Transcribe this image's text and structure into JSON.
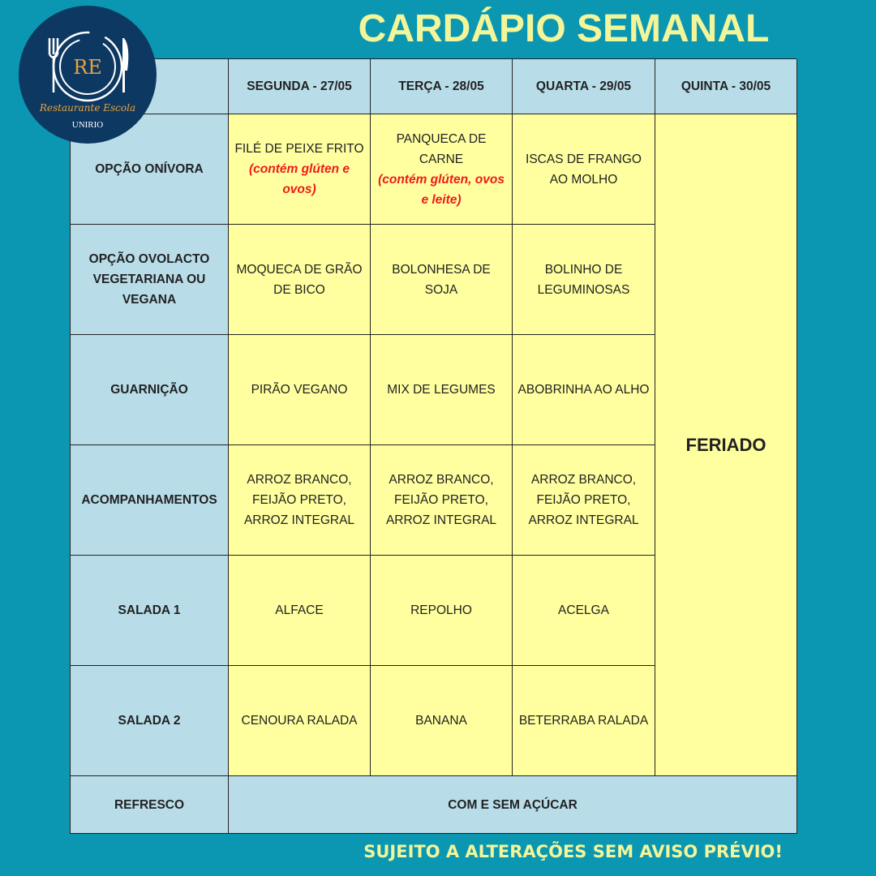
{
  "title": "CARDÁPIO SEMANAL",
  "logo": {
    "initials": "RE",
    "name": "Restaurante Escola",
    "org": "UNIRIO"
  },
  "days": [
    "SEGUNDA - 27/05",
    "TERÇA - 28/05",
    "QUARTA - 29/05",
    "QUINTA - 30/05"
  ],
  "rows": [
    {
      "label": "OPÇÃO ONÍVORA",
      "items": [
        {
          "text": "FILÉ DE PEIXE FRITO",
          "note": "(contém glúten e ovos)"
        },
        {
          "text": "PANQUECA DE CARNE",
          "note": "(contém glúten, ovos e leite)"
        },
        {
          "text": "ISCAS DE FRANGO AO MOLHO"
        }
      ]
    },
    {
      "label": "OPÇÃO OVOLACTO VEGETARIANA OU VEGANA",
      "items": [
        {
          "text": "MOQUECA DE GRÃO DE BICO"
        },
        {
          "text": "BOLONHESA DE SOJA"
        },
        {
          "text": "BOLINHO DE LEGUMINOSAS"
        }
      ]
    },
    {
      "label": "GUARNIÇÃO",
      "items": [
        {
          "text": "PIRÃO VEGANO"
        },
        {
          "text": "MIX DE LEGUMES"
        },
        {
          "text": "ABOBRINHA AO ALHO"
        }
      ]
    },
    {
      "label": "ACOMPANHAMENTOS",
      "items": [
        {
          "text": "ARROZ BRANCO, FEIJÃO PRETO, ARROZ INTEGRAL"
        },
        {
          "text": "ARROZ BRANCO, FEIJÃO PRETO, ARROZ INTEGRAL"
        },
        {
          "text": "ARROZ BRANCO, FEIJÃO PRETO, ARROZ INTEGRAL"
        }
      ]
    },
    {
      "label": "SALADA 1",
      "items": [
        {
          "text": "ALFACE"
        },
        {
          "text": "REPOLHO"
        },
        {
          "text": "ACELGA"
        }
      ]
    },
    {
      "label": "SALADA 2",
      "items": [
        {
          "text": "CENOURA RALADA"
        },
        {
          "text": "BANANA"
        },
        {
          "text": "BETERRABA RALADA"
        }
      ]
    }
  ],
  "holiday": "FERIADO",
  "refresco": {
    "label": "REFRESCO",
    "value": "COM E SEM AÇÚCAR"
  },
  "footer": "SUJEITO A ALTERAÇÕES SEM AVISO PRÉVIO!",
  "colors": {
    "background": "#0b97b1",
    "title": "#f3f59a",
    "header": "#b8dde9",
    "cell": "#ffff9f",
    "allergen": "#f01a1a",
    "logo": "#0d3862"
  }
}
